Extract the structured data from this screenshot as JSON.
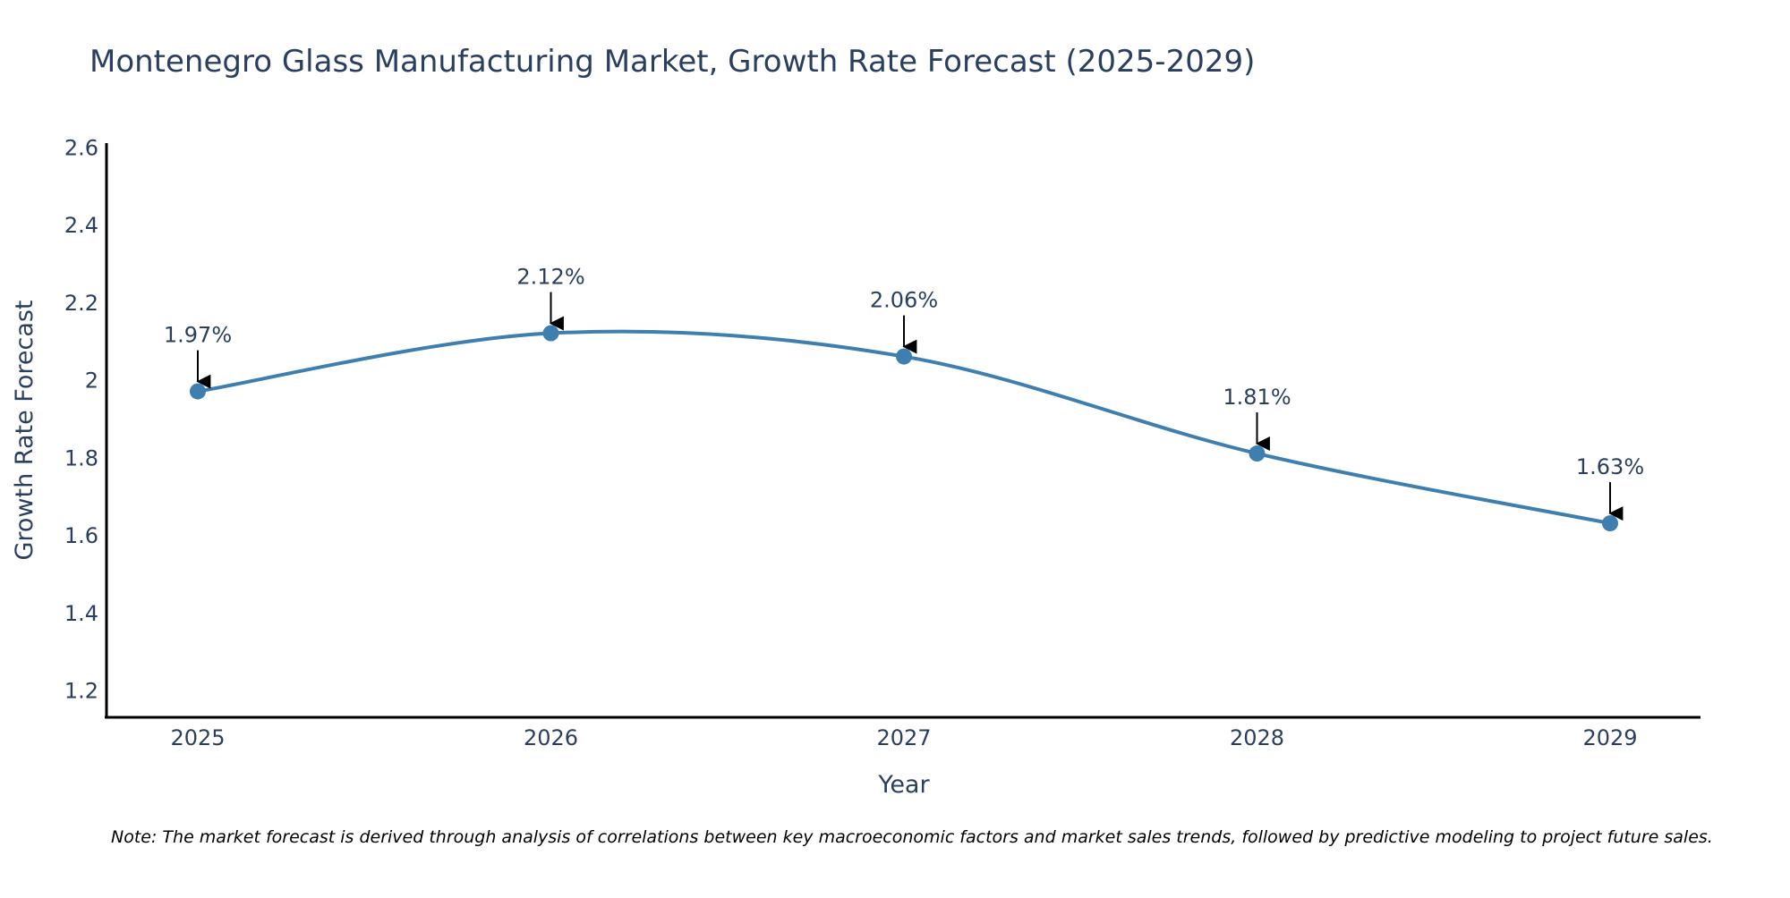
{
  "chart_data": {
    "type": "line",
    "title": "Montenegro Glass Manufacturing Market, Growth Rate Forecast (2025-2029)",
    "xlabel": "Year",
    "ylabel": "Growth Rate Forecast",
    "categories": [
      "2025",
      "2026",
      "2027",
      "2028",
      "2029"
    ],
    "series": [
      {
        "name": "Growth Rate Forecast",
        "values": [
          1.97,
          2.12,
          2.06,
          1.81,
          1.63
        ]
      }
    ],
    "data_labels": [
      "1.97%",
      "2.12%",
      "2.06%",
      "1.81%",
      "1.63%"
    ],
    "y_ticks": [
      1.2,
      1.4,
      1.6,
      1.8,
      2,
      2.2,
      2.4,
      2.6
    ],
    "y_tick_labels": [
      "1.2",
      "1.4",
      "1.6",
      "1.8",
      "2",
      "2.2",
      "2.4",
      "2.6"
    ],
    "ylim": [
      1.13,
      2.61
    ],
    "grid": false,
    "line_color": "#3e7fb0",
    "marker_color": "#3e7fb0",
    "text_color": "#2a3f5f",
    "note": "Note: The market forecast is derived through analysis of correlations between key macroeconomic factors and market sales trends, followed by predictive modeling to project future sales."
  }
}
